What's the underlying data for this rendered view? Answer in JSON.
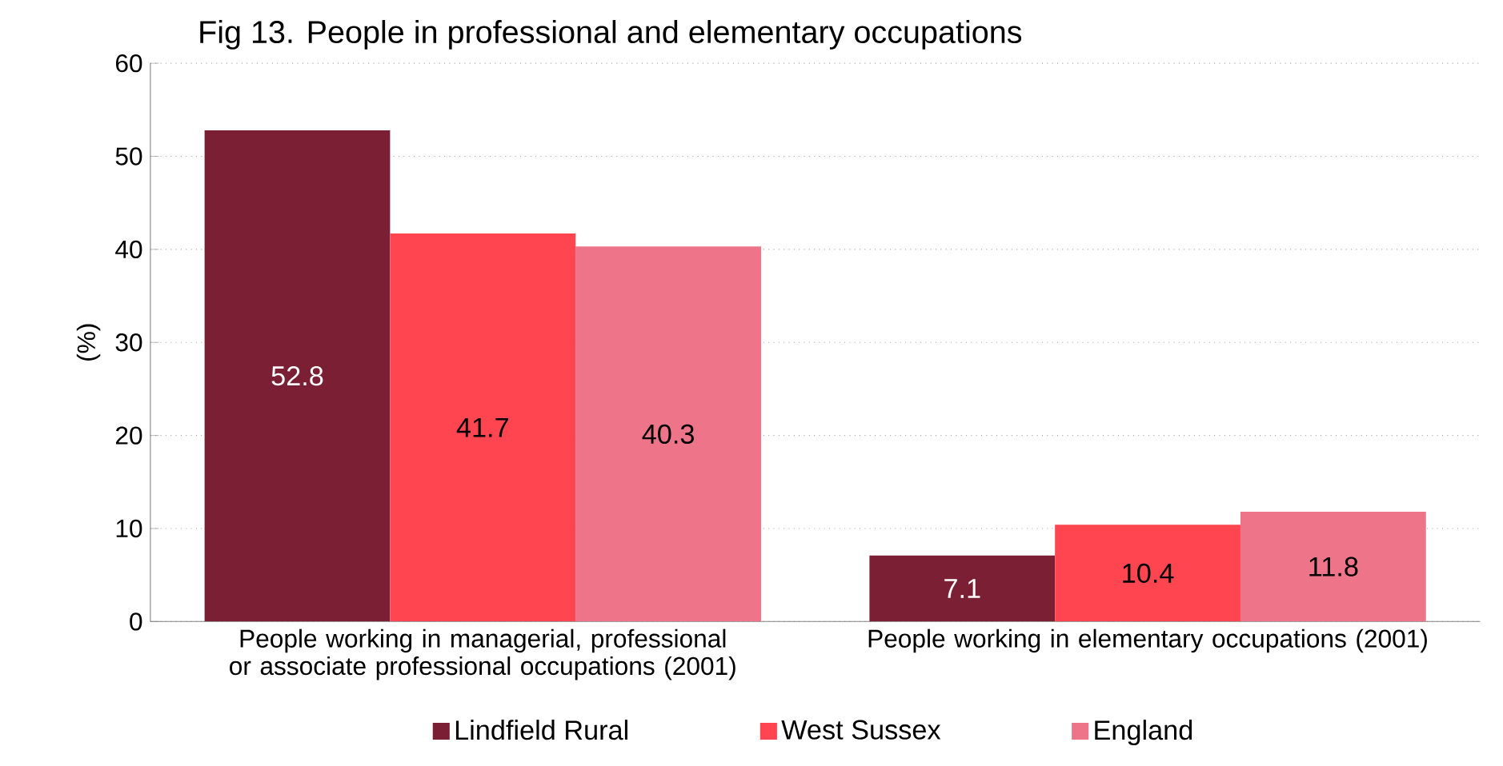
{
  "chart_data": {
    "type": "bar",
    "title": "Fig 13. People in professional and elementary occupations",
    "ylabel": "(%)",
    "categories": [
      "People working in managerial, professional or associate professional occupations (2001)",
      "People working in elementary occupations (2001)"
    ],
    "series": [
      {
        "name": "Lindfield Rural",
        "color": "#7b1f34",
        "values": [
          52.8,
          7.1
        ]
      },
      {
        "name": "West Sussex",
        "color": "#ff4650",
        "values": [
          41.7,
          10.4
        ]
      },
      {
        "name": "England",
        "color": "#ee7589",
        "values": [
          40.3,
          11.8
        ]
      }
    ],
    "ylim": [
      0,
      60
    ],
    "yticks": [
      0,
      10,
      20,
      30,
      40,
      50,
      60
    ],
    "grid": "y",
    "legend": "bottom",
    "data_labels": true
  }
}
